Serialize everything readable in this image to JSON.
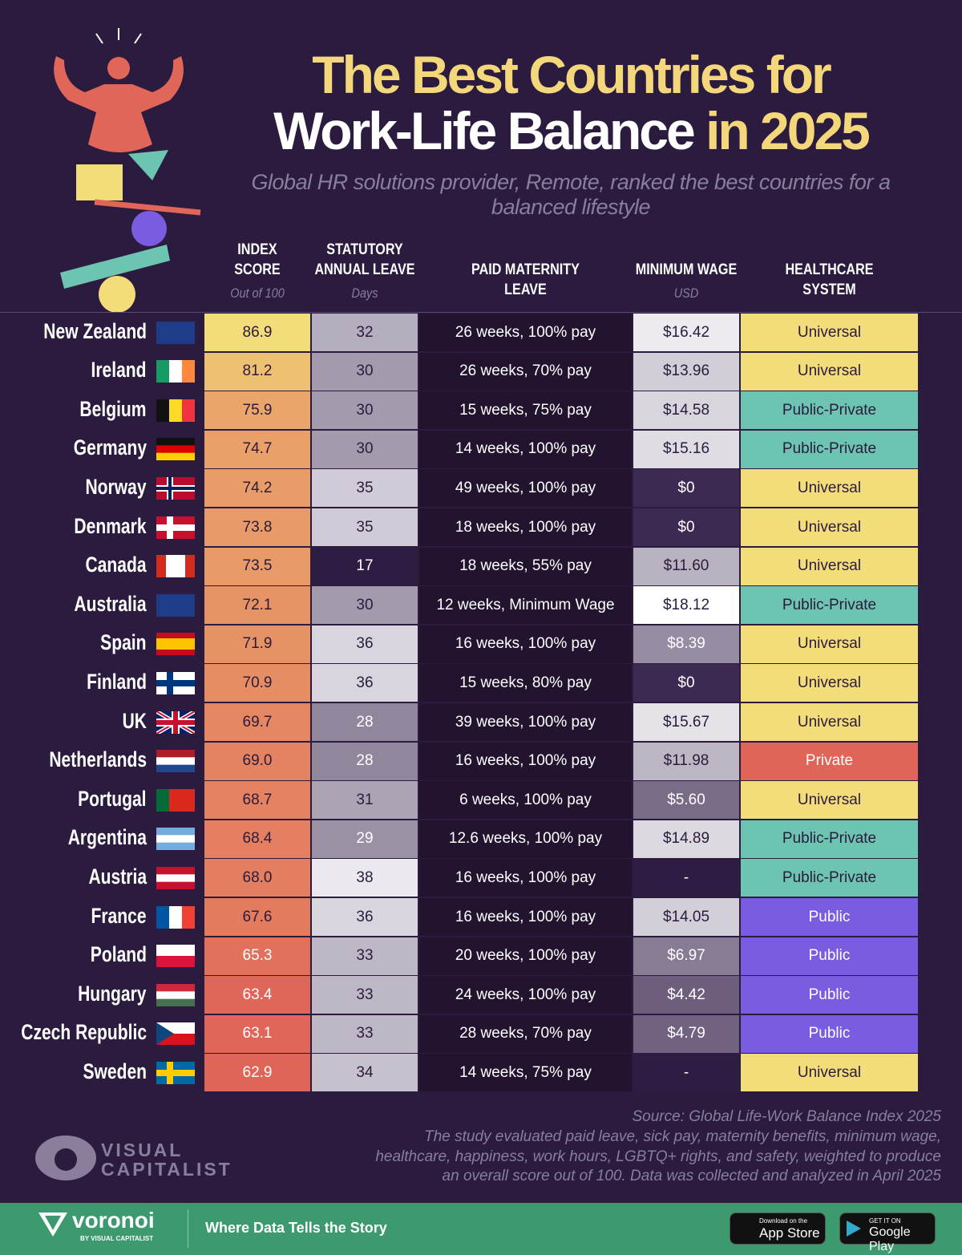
{
  "header": {
    "title_line1": "The Best Countries for",
    "title_line2": "Work-Life Balance",
    "title_line2_highlight": "in 2025",
    "subtitle": "Global HR solutions provider, Remote, ranked the best countries for a balanced lifestyle"
  },
  "table": {
    "columns": [
      {
        "label": [
          "INDEX",
          "SCORE"
        ],
        "sublabel": "Out of 100"
      },
      {
        "label": [
          "STATUTORY",
          "ANNUAL LEAVE"
        ],
        "sublabel": "Days"
      },
      {
        "label": [
          "PAID MATERNITY",
          "LEAVE"
        ]
      },
      {
        "label": [
          "MINIMUM WAGE"
        ],
        "sublabel": "USD"
      },
      {
        "label": [
          "HEALTHCARE",
          "SYSTEM"
        ]
      }
    ],
    "rows": [
      [
        "New Zealand",
        "86.9",
        "32",
        "26 weeks, 100% pay",
        "$16.42",
        "Universal"
      ],
      [
        "Ireland",
        "81.2",
        "30",
        "26 weeks, 70% pay",
        "$13.96",
        "Universal"
      ],
      [
        "Belgium",
        "75.9",
        "30",
        "15 weeks, 75% pay",
        "$14.58",
        "Public-Private"
      ],
      [
        "Germany",
        "74.7",
        "30",
        "14 weeks, 100% pay",
        "$15.16",
        "Public-Private"
      ],
      [
        "Norway",
        "74.2",
        "35",
        "49 weeks, 100% pay",
        "$0",
        "Universal"
      ],
      [
        "Denmark",
        "73.8",
        "35",
        "18 weeks, 100% pay",
        "$0",
        "Universal"
      ],
      [
        "Canada",
        "73.5",
        "17",
        "18 weeks, 55% pay",
        "$11.60",
        "Universal"
      ],
      [
        "Australia",
        "72.1",
        "30",
        "12 weeks, Minimum Wage",
        "$18.12",
        "Public-Private"
      ],
      [
        "Spain",
        "71.9",
        "36",
        "16 weeks, 100% pay",
        "$8.39",
        "Universal"
      ],
      [
        "Finland",
        "70.9",
        "36",
        "15 weeks, 80% pay",
        "$0",
        "Universal"
      ],
      [
        "UK",
        "69.7",
        "28",
        "39 weeks, 100% pay",
        "$15.67",
        "Universal"
      ],
      [
        "Netherlands",
        "69.0",
        "28",
        "16 weeks, 100% pay",
        "$11.98",
        "Private"
      ],
      [
        "Portugal",
        "68.7",
        "31",
        "6 weeks, 100% pay",
        "$5.60",
        "Universal"
      ],
      [
        "Argentina",
        "68.4",
        "29",
        "12.6 weeks, 100% pay",
        "$14.89",
        "Public-Private"
      ],
      [
        "Austria",
        "68.0",
        "38",
        "16 weeks, 100% pay",
        "-",
        "Public-Private"
      ],
      [
        "France",
        "67.6",
        "36",
        "16 weeks, 100% pay",
        "$14.05",
        "Public"
      ],
      [
        "Poland",
        "65.3",
        "33",
        "20 weeks, 100% pay",
        "$6.97",
        "Public"
      ],
      [
        "Hungary",
        "63.4",
        "33",
        "24 weeks, 100% pay",
        "$4.42",
        "Public"
      ],
      [
        "Czech Republic",
        "63.1",
        "33",
        "28 weeks, 70% pay",
        "$4.79",
        "Public"
      ],
      [
        "Sweden",
        "62.9",
        "34",
        "14 weeks, 75% pay",
        "-",
        "Universal"
      ]
    ],
    "healthcare_colors": {
      "Universal": "#f3dc7a",
      "Public-Private": "#6cc4b1",
      "Private": "#df6559",
      "Public": "#7a5ce0"
    }
  },
  "footer": {
    "source": "Source: Global Life-Work Balance Index 2025",
    "note_lines": [
      "The study evaluated paid leave, sick pay, maternity benefits, minimum wage,",
      "healthcare, happiness, work hours, LGBTQ+ rights, and safety, weighted to produce",
      "an overall score out of 100. Data was collected and analyzed in April 2025"
    ],
    "brand": [
      "VISUAL",
      "CAPITALIST"
    ]
  },
  "banner": {
    "logo": "voronoi",
    "logo_sub": "BY VISUAL CAPITALIST",
    "tagline": "Where Data Tells the Story",
    "app_store": [
      "Download on the",
      "App Store"
    ],
    "google_play": [
      "GET IT ON",
      "Google Play"
    ]
  }
}
